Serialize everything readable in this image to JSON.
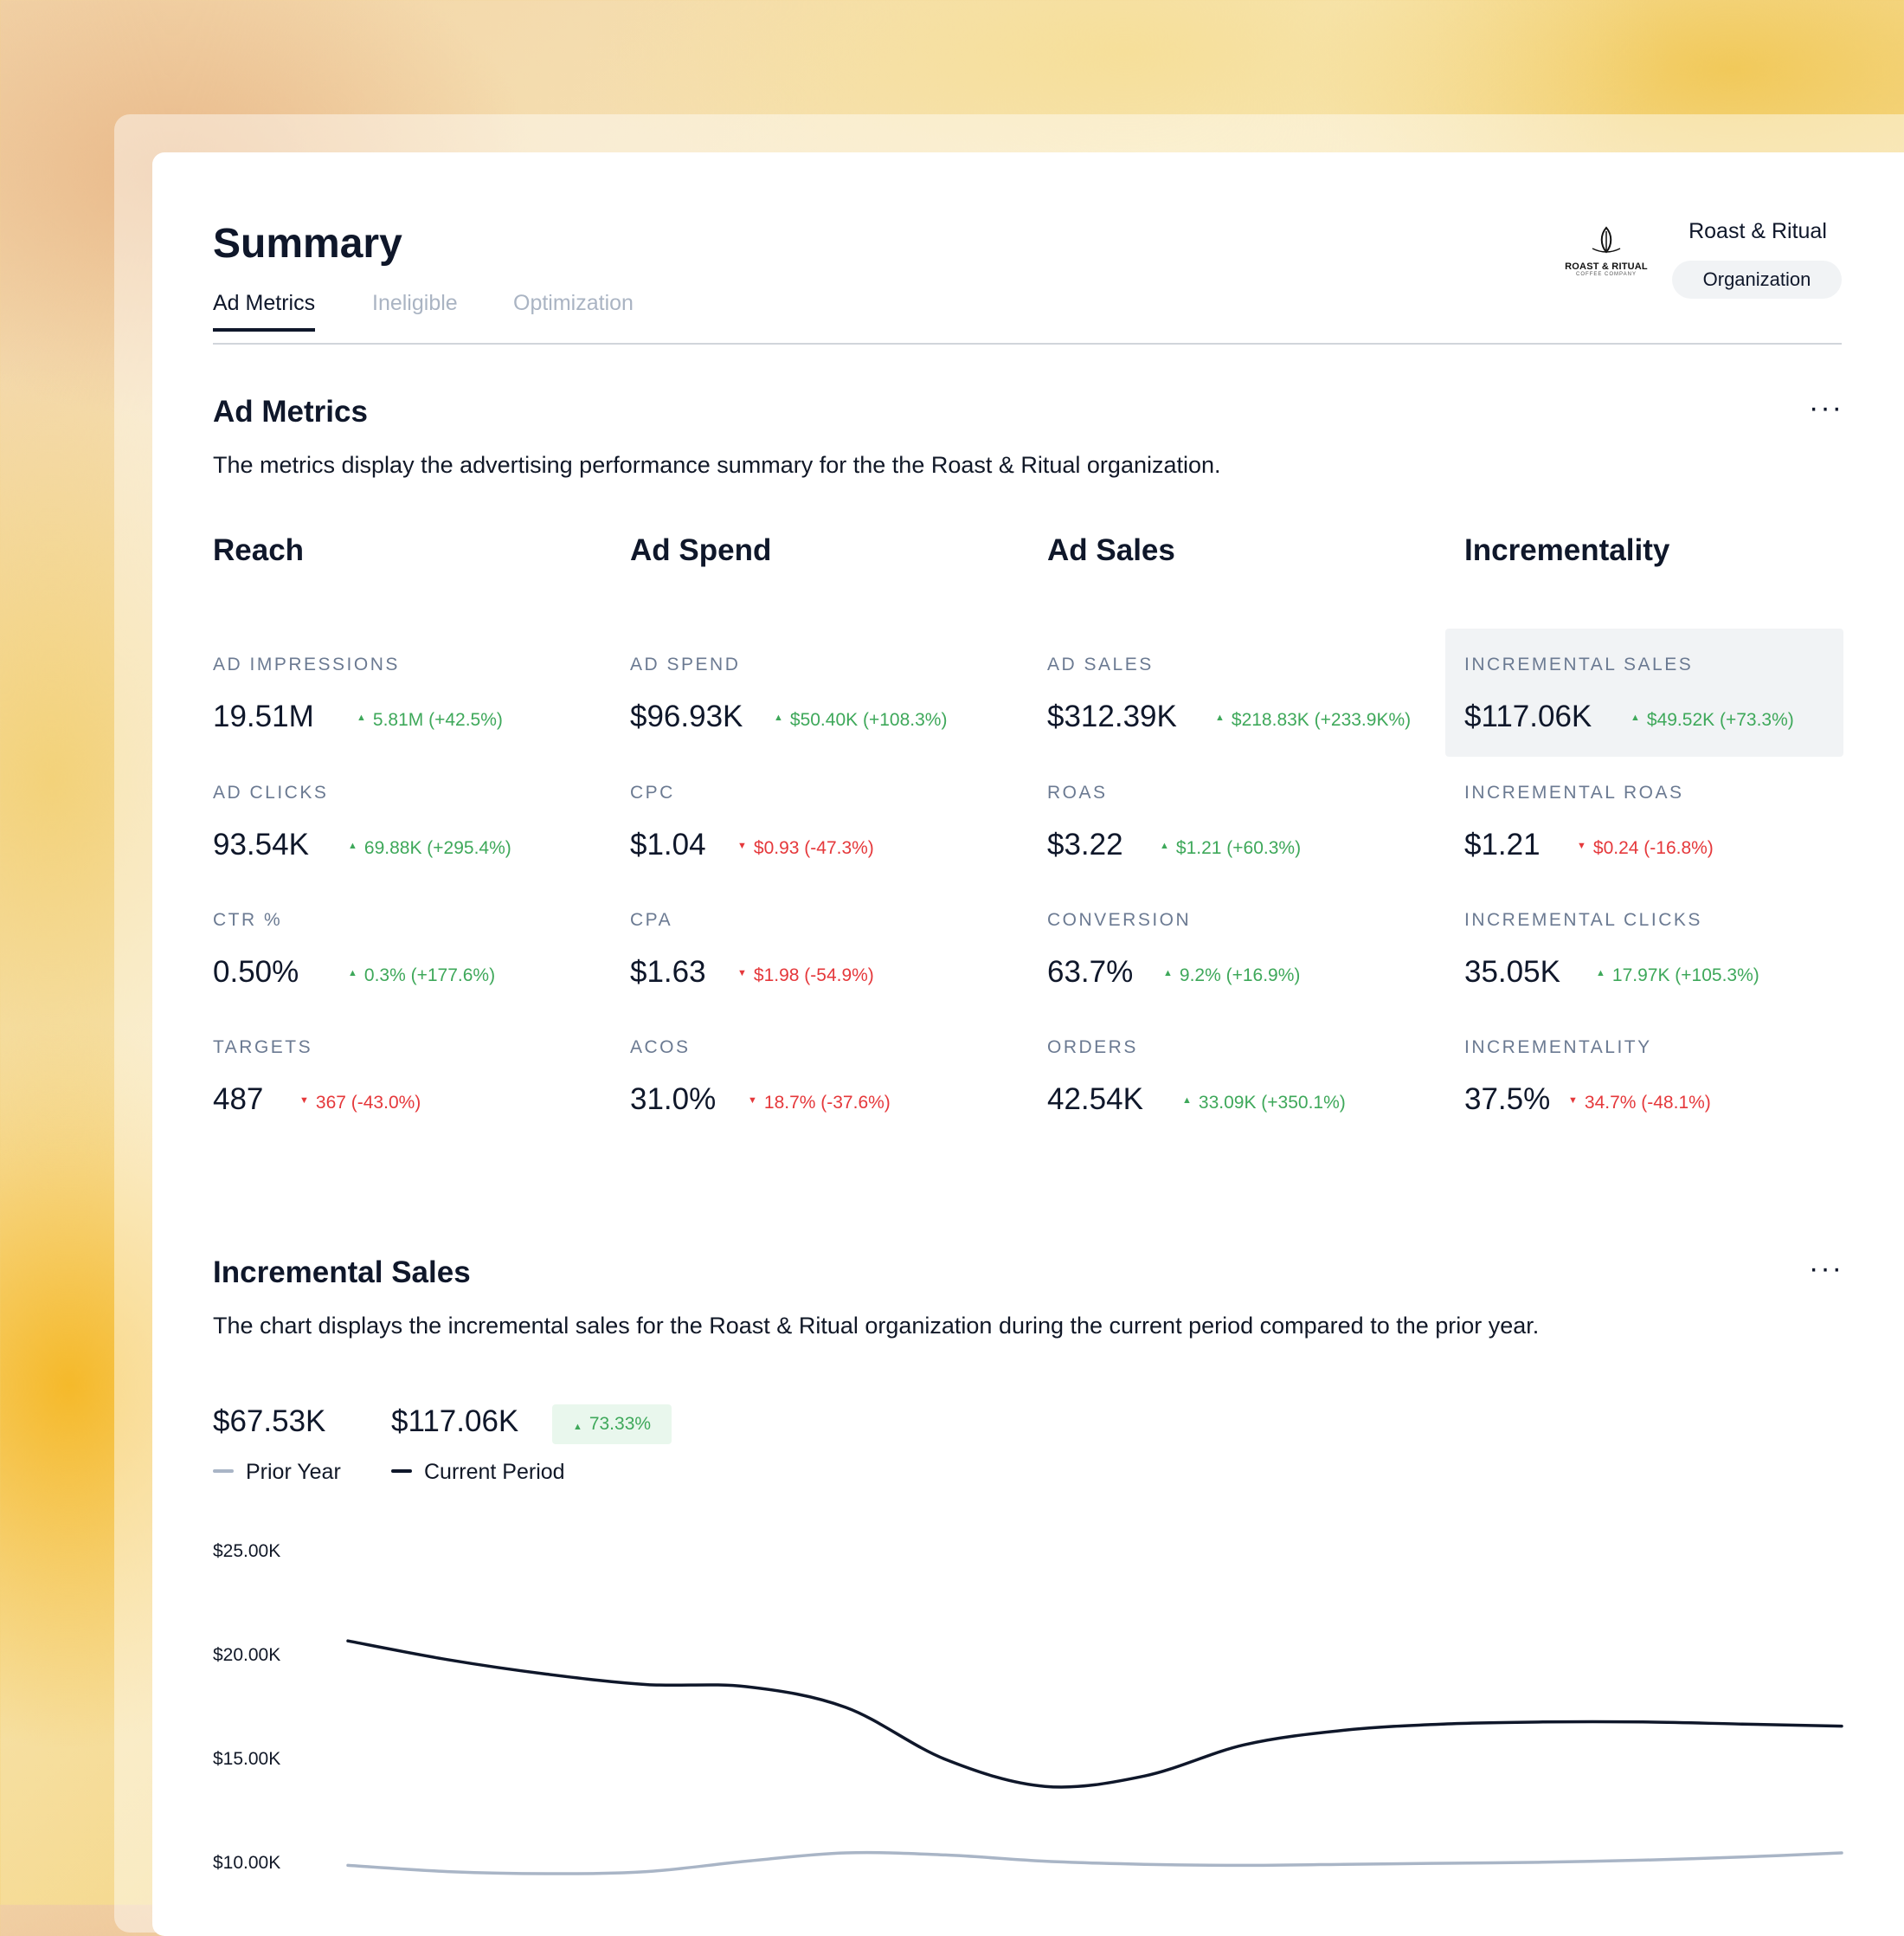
{
  "header": {
    "title": "Summary",
    "tabs": [
      "Ad Metrics",
      "Ineligible",
      "Optimization"
    ],
    "active_tab": "Ad Metrics",
    "org": {
      "logo_text": "ROAST & RITUAL",
      "logo_subtext": "COFFEE COMPANY",
      "name": "Roast & Ritual",
      "badge": "Organization"
    }
  },
  "ad_metrics": {
    "title": "Ad Metrics",
    "description": "The metrics display the advertising performance summary for the the Roast & Ritual organization.",
    "more": "···",
    "groups": [
      {
        "title": "Reach",
        "metrics": [
          {
            "label": "AD IMPRESSIONS",
            "value": "19.51M",
            "delta": "5.81M (+42.5%)",
            "dir": "up"
          },
          {
            "label": "AD CLICKS",
            "value": "93.54K",
            "delta": "69.88K (+295.4%)",
            "dir": "up"
          },
          {
            "label": "CTR %",
            "value": "0.50%",
            "delta": "0.3% (+177.6%)",
            "dir": "up"
          },
          {
            "label": "TARGETS",
            "value": "487",
            "delta": "367 (-43.0%)",
            "dir": "down"
          }
        ]
      },
      {
        "title": "Ad Spend",
        "metrics": [
          {
            "label": "AD SPEND",
            "value": "$96.93K",
            "delta": "$50.40K (+108.3%)",
            "dir": "up"
          },
          {
            "label": "CPC",
            "value": "$1.04",
            "delta": "$0.93 (-47.3%)",
            "dir": "down"
          },
          {
            "label": "CPA",
            "value": "$1.63",
            "delta": "$1.98 (-54.9%)",
            "dir": "down"
          },
          {
            "label": "ACOS",
            "value": "31.0%",
            "delta": "18.7% (-37.6%)",
            "dir": "down"
          }
        ]
      },
      {
        "title": "Ad Sales",
        "metrics": [
          {
            "label": "AD SALES",
            "value": "$312.39K",
            "delta": "$218.83K (+233.9K%)",
            "dir": "up"
          },
          {
            "label": "ROAS",
            "value": "$3.22",
            "delta": "$1.21 (+60.3%)",
            "dir": "up"
          },
          {
            "label": "CONVERSION",
            "value": "63.7%",
            "delta": "9.2% (+16.9%)",
            "dir": "up"
          },
          {
            "label": "ORDERS",
            "value": "42.54K",
            "delta": "33.09K (+350.1%)",
            "dir": "up"
          }
        ]
      },
      {
        "title": "Incrementality",
        "metrics": [
          {
            "label": "INCREMENTAL SALES",
            "value": "$117.06K",
            "delta": "$49.52K (+73.3%)",
            "dir": "up",
            "highlighted": true
          },
          {
            "label": "INCREMENTAL ROAS",
            "value": "$1.21",
            "delta": "$0.24 (-16.8%)",
            "dir": "down"
          },
          {
            "label": "INCREMENTAL CLICKS",
            "value": "35.05K",
            "delta": "17.97K (+105.3%)",
            "dir": "up"
          },
          {
            "label": "INCREMENTALITY",
            "value": "37.5%",
            "delta": "34.7% (-48.1%)",
            "dir": "down"
          }
        ]
      }
    ]
  },
  "incremental_sales": {
    "title": "Incremental Sales",
    "description": "The chart displays the incremental sales for the Roast & Ritual organization during the current period compared to the prior year.",
    "more": "···",
    "prior_total": "$67.53K",
    "current_total": "$117.06K",
    "change": "73.33%",
    "change_dir": "up"
  },
  "chart_data": {
    "type": "line",
    "y_ticks": [
      "$25.00K",
      "$20.00K",
      "$15.00K",
      "$10.00K"
    ],
    "ylim": [
      10000,
      25000
    ],
    "series": [
      {
        "name": "Current Period",
        "color": "#0f172a",
        "values": [
          20700,
          19800,
          19100,
          18600,
          18500,
          17500,
          15000,
          13700,
          14200,
          15700,
          16400,
          16700,
          16800,
          16800,
          16700,
          16600
        ]
      },
      {
        "name": "Prior Year",
        "color": "#a9b5c6",
        "values": [
          9900,
          9600,
          9500,
          9600,
          10100,
          10500,
          10400,
          10100,
          9950,
          9900,
          9950,
          10000,
          10050,
          10150,
          10300,
          10500
        ]
      }
    ],
    "grid": false,
    "legend": "top-left"
  }
}
